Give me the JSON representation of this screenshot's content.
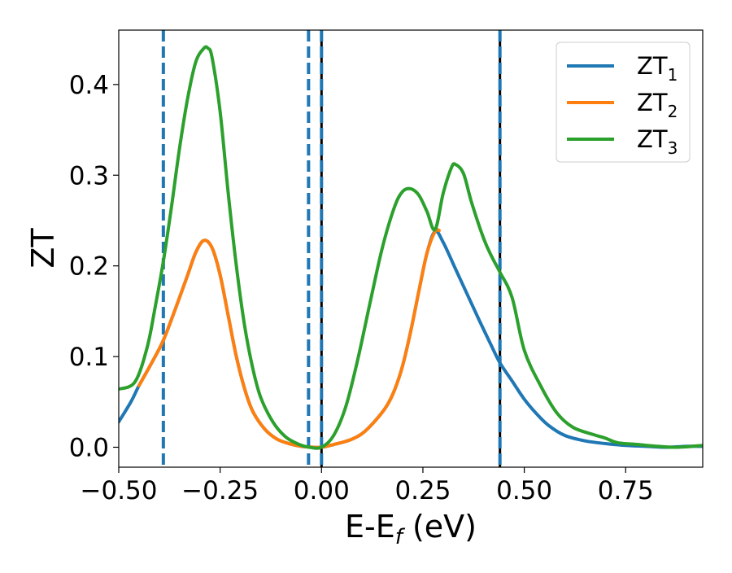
{
  "chart_data": {
    "type": "line",
    "xlabel": "E-E",
    "xlabel_sub": "f",
    "xlabel_unit": " (eV)",
    "ylabel": "ZT",
    "xlim": [
      -0.5,
      0.94
    ],
    "ylim": [
      -0.022,
      0.46
    ],
    "xticks": [
      -0.5,
      -0.25,
      0.0,
      0.25,
      0.5,
      0.75
    ],
    "xtick_labels": [
      "−0.50",
      "−0.25",
      "0.00",
      "0.25",
      "0.50",
      "0.75"
    ],
    "yticks": [
      0.0,
      0.1,
      0.2,
      0.3,
      0.4
    ],
    "ytick_labels": [
      "0.0",
      "0.1",
      "0.2",
      "0.3",
      "0.4"
    ],
    "grid": false,
    "legend_position": "top-right",
    "vlines": [
      {
        "x": -0.39,
        "style": "dashed",
        "color": "#1f77b4"
      },
      {
        "x": -0.032,
        "style": "dashed",
        "color": "#1f77b4"
      },
      {
        "x": 0.0,
        "style": "solid",
        "color": "#000000"
      },
      {
        "x": 0.0,
        "style": "dashed",
        "color": "#1f77b4"
      },
      {
        "x": 0.44,
        "style": "solid",
        "color": "#000000"
      },
      {
        "x": 0.44,
        "style": "dashed",
        "color": "#1f77b4"
      }
    ],
    "series": [
      {
        "name": "ZT",
        "sub": "1",
        "color": "#1f77b4",
        "x": [
          -0.5,
          -0.47,
          -0.45,
          -0.42,
          -0.39,
          -0.36,
          -0.33,
          -0.31,
          -0.29,
          -0.27,
          -0.25,
          -0.23,
          -0.21,
          -0.19,
          -0.17,
          -0.14,
          -0.11,
          -0.08,
          -0.05,
          -0.02,
          0.0,
          0.03,
          0.07,
          0.1,
          0.13,
          0.16,
          0.18,
          0.2,
          0.22,
          0.24,
          0.26,
          0.28,
          0.3,
          0.33,
          0.36,
          0.39,
          0.42,
          0.44,
          0.47,
          0.5,
          0.53,
          0.56,
          0.6,
          0.65,
          0.7,
          0.75,
          0.8,
          0.85,
          0.9,
          0.94
        ],
        "y": [
          0.028,
          0.05,
          0.068,
          0.092,
          0.118,
          0.153,
          0.19,
          0.215,
          0.228,
          0.22,
          0.19,
          0.145,
          0.1,
          0.065,
          0.04,
          0.02,
          0.009,
          0.004,
          0.001,
          0.0,
          0.0,
          0.003,
          0.008,
          0.015,
          0.028,
          0.045,
          0.063,
          0.09,
          0.128,
          0.172,
          0.214,
          0.238,
          0.226,
          0.197,
          0.168,
          0.139,
          0.111,
          0.093,
          0.073,
          0.053,
          0.037,
          0.024,
          0.013,
          0.007,
          0.004,
          0.002,
          0.001,
          0.0,
          0.001,
          0.001
        ]
      },
      {
        "name": "ZT",
        "sub": "2",
        "color": "#ff7f0e",
        "x": [
          -0.45,
          -0.42,
          -0.39,
          -0.36,
          -0.33,
          -0.31,
          -0.29,
          -0.27,
          -0.25,
          -0.23,
          -0.21,
          -0.19,
          -0.17,
          -0.14,
          -0.11,
          -0.08,
          -0.05,
          -0.02,
          0.0,
          0.03,
          0.07,
          0.1,
          0.13,
          0.16,
          0.18,
          0.2,
          0.22,
          0.24,
          0.26,
          0.28,
          0.29
        ],
        "y": [
          0.068,
          0.092,
          0.118,
          0.153,
          0.19,
          0.215,
          0.228,
          0.22,
          0.19,
          0.145,
          0.1,
          0.065,
          0.04,
          0.02,
          0.009,
          0.004,
          0.001,
          0.0,
          0.0,
          0.003,
          0.008,
          0.015,
          0.028,
          0.045,
          0.063,
          0.09,
          0.128,
          0.172,
          0.214,
          0.238,
          0.239
        ]
      },
      {
        "name": "ZT",
        "sub": "3",
        "color": "#2ca02c",
        "x": [
          -0.5,
          -0.46,
          -0.43,
          -0.41,
          -0.39,
          -0.37,
          -0.35,
          -0.33,
          -0.31,
          -0.29,
          -0.28,
          -0.27,
          -0.25,
          -0.23,
          -0.21,
          -0.19,
          -0.17,
          -0.15,
          -0.12,
          -0.09,
          -0.06,
          -0.03,
          0.0,
          0.03,
          0.06,
          0.09,
          0.12,
          0.15,
          0.18,
          0.2,
          0.22,
          0.24,
          0.26,
          0.28,
          0.3,
          0.32,
          0.33,
          0.35,
          0.37,
          0.4,
          0.42,
          0.44,
          0.47,
          0.5,
          0.54,
          0.58,
          0.62,
          0.67,
          0.7,
          0.73,
          0.78,
          0.83,
          0.88,
          0.94
        ],
        "y": [
          0.064,
          0.072,
          0.11,
          0.155,
          0.205,
          0.265,
          0.33,
          0.385,
          0.425,
          0.44,
          0.44,
          0.43,
          0.37,
          0.28,
          0.2,
          0.135,
          0.088,
          0.055,
          0.028,
          0.012,
          0.004,
          0.0,
          0.0,
          0.013,
          0.045,
          0.098,
          0.16,
          0.22,
          0.265,
          0.282,
          0.285,
          0.278,
          0.26,
          0.24,
          0.28,
          0.308,
          0.312,
          0.302,
          0.27,
          0.23,
          0.21,
          0.193,
          0.165,
          0.107,
          0.068,
          0.038,
          0.022,
          0.014,
          0.01,
          0.005,
          0.003,
          0.001,
          0.0,
          0.002
        ]
      }
    ]
  }
}
